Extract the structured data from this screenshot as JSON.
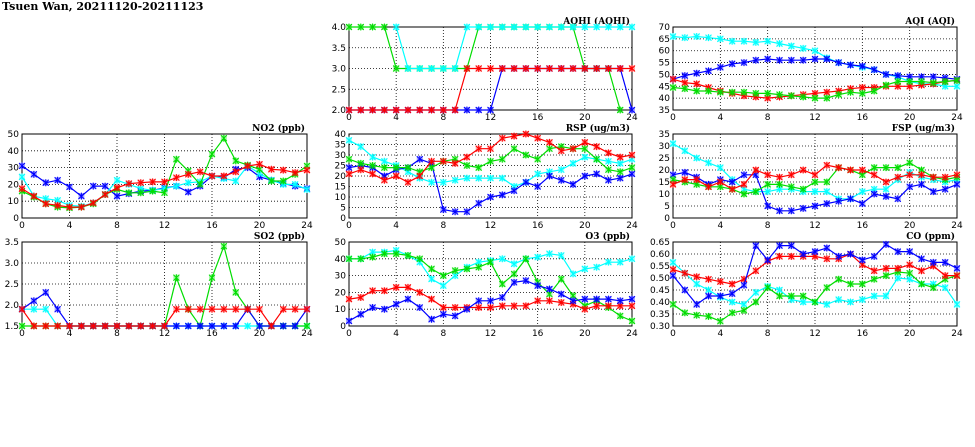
{
  "title": "Tsuen Wan, 20211120-20211123",
  "series_colors": {
    "blue": "#0000ff",
    "red": "#ff0000",
    "green": "#00dd00",
    "cyan": "#00ffff"
  },
  "chart_data": [
    {
      "id": "aqhi",
      "type": "line",
      "title": "AQHI (AQHI)",
      "ylim": [
        2,
        4
      ],
      "yticks": [
        "2.0",
        "2.5",
        "3.0",
        "3.5",
        "4.0"
      ],
      "xticks": [
        "0",
        "4",
        "8",
        "12",
        "16",
        "20",
        "24"
      ],
      "xlim": [
        0,
        24
      ],
      "grid": true,
      "series": [
        {
          "name": "green",
          "values": [
            4,
            4,
            4,
            4,
            3,
            3,
            3,
            3,
            3,
            3,
            3,
            4,
            4,
            4,
            4,
            4,
            4,
            4,
            4,
            4,
            3,
            3,
            3,
            2,
            null
          ]
        },
        {
          "name": "cyan",
          "values": [
            null,
            null,
            null,
            null,
            4,
            3,
            3,
            3,
            3,
            3,
            4,
            4,
            4,
            4,
            4,
            4,
            4,
            4,
            4,
            4,
            4,
            4,
            4,
            4,
            4
          ]
        },
        {
          "name": "blue",
          "values": [
            2,
            2,
            2,
            2,
            2,
            2,
            2,
            2,
            2,
            2,
            2,
            2,
            2,
            3,
            3,
            3,
            3,
            3,
            3,
            3,
            3,
            3,
            3,
            3,
            2
          ]
        },
        {
          "name": "red",
          "values": [
            2,
            2,
            2,
            2,
            2,
            2,
            2,
            2,
            2,
            2,
            3,
            3,
            3,
            3,
            3,
            3,
            3,
            3,
            3,
            3,
            3,
            3,
            3,
            3,
            3
          ]
        }
      ]
    },
    {
      "id": "aqi",
      "type": "line",
      "title": "AQI (AQI)",
      "ylim": [
        35,
        70
      ],
      "yticks": [
        "35",
        "40",
        "45",
        "50",
        "55",
        "60",
        "65",
        "70"
      ],
      "xticks": [
        "0",
        "4",
        "8",
        "12",
        "16",
        "20",
        "24"
      ],
      "xlim": [
        0,
        24
      ],
      "grid": true,
      "series": [
        {
          "name": "cyan",
          "values": [
            66,
            65.5,
            66,
            65.5,
            65,
            64,
            64,
            63.5,
            64,
            63,
            62,
            61,
            60,
            57,
            55,
            54,
            53,
            52,
            50,
            49,
            47,
            46,
            46,
            45,
            45
          ]
        },
        {
          "name": "blue",
          "values": [
            48,
            49.5,
            50.5,
            51.5,
            53,
            54.5,
            55,
            56,
            56.5,
            56,
            56,
            56,
            56.5,
            56.5,
            55,
            54,
            53.5,
            52,
            50,
            49.5,
            49,
            49,
            49,
            48.5,
            48
          ]
        },
        {
          "name": "red",
          "values": [
            48,
            46.5,
            46,
            44.5,
            43,
            42,
            41,
            40.5,
            40,
            40.5,
            41,
            41.5,
            42,
            42.5,
            43,
            44,
            44.5,
            44.5,
            45,
            45,
            45,
            45.5,
            46,
            47,
            47.5
          ]
        },
        {
          "name": "green",
          "values": [
            44.5,
            44,
            43,
            43,
            42.5,
            42.5,
            42.5,
            42,
            42,
            41.5,
            41,
            40.5,
            40,
            40,
            41.5,
            42.5,
            42,
            43,
            45.5,
            47,
            47,
            47,
            46.5,
            47,
            47.5
          ]
        }
      ]
    },
    {
      "id": "no2",
      "type": "line",
      "title": "NO2 (ppb)",
      "ylim": [
        0,
        50
      ],
      "yticks": [
        "0",
        "10",
        "20",
        "30",
        "40",
        "50"
      ],
      "xticks": [
        "0",
        "4",
        "8",
        "12",
        "16",
        "20",
        "24"
      ],
      "xlim": [
        0,
        24
      ],
      "grid": true,
      "series": [
        {
          "name": "blue",
          "values": [
            31,
            26,
            21,
            22.5,
            18.5,
            13,
            19,
            19,
            13,
            14.5,
            16,
            16.5,
            18,
            19,
            15.5,
            19,
            25,
            24,
            29,
            30,
            24.5,
            22.5,
            20.5,
            19,
            17.5
          ]
        },
        {
          "name": "cyan",
          "values": [
            24.5,
            13,
            11.5,
            10.5,
            7.5,
            7,
            9,
            14,
            22.5,
            20,
            17.5,
            16.5,
            17.5,
            19,
            21,
            21.5,
            25,
            23.5,
            22,
            31,
            26.5,
            22.5,
            20,
            20,
            17
          ]
        },
        {
          "name": "green",
          "values": [
            16,
            12.5,
            8.5,
            6.5,
            6,
            6.5,
            8.5,
            14,
            17,
            15,
            15,
            16,
            15,
            35,
            28,
            20,
            38,
            47.5,
            34,
            31.5,
            29,
            22,
            22,
            26,
            31
          ]
        },
        {
          "name": "red",
          "values": [
            17.5,
            13,
            8.5,
            7.5,
            6.5,
            6.5,
            9,
            14,
            18,
            20.5,
            21,
            21.5,
            21.5,
            24,
            26,
            27.5,
            25,
            25,
            27.5,
            31,
            32,
            29,
            28.5,
            27,
            28.5
          ]
        }
      ]
    },
    {
      "id": "rsp",
      "type": "line",
      "title": "RSP (ug/m3)",
      "ylim": [
        0,
        40
      ],
      "yticks": [
        "0",
        "5",
        "10",
        "15",
        "20",
        "25",
        "30",
        "35",
        "40"
      ],
      "xticks": [
        "0",
        "4",
        "8",
        "12",
        "16",
        "20",
        "24"
      ],
      "xlim": [
        0,
        24
      ],
      "grid": true,
      "series": [
        {
          "name": "cyan",
          "values": [
            37,
            34,
            29,
            27,
            25,
            22,
            19,
            17,
            17,
            18,
            19,
            19,
            19,
            19,
            15,
            17,
            21,
            22,
            23,
            26,
            29,
            28,
            27,
            26,
            28
          ]
        },
        {
          "name": "blue",
          "values": [
            24,
            25,
            24,
            20,
            23,
            24,
            28,
            26,
            4,
            3,
            3,
            7,
            10,
            11,
            13,
            17,
            15,
            20,
            18,
            16,
            20,
            21,
            18,
            19,
            21
          ]
        },
        {
          "name": "green",
          "values": [
            28,
            26,
            25,
            24,
            24,
            24,
            22,
            24,
            27,
            28,
            25,
            24,
            27,
            28,
            33,
            30,
            28,
            33,
            34,
            33,
            33,
            28,
            23,
            22,
            24
          ]
        },
        {
          "name": "red",
          "values": [
            21,
            23,
            21,
            18,
            20,
            17,
            20,
            27,
            27,
            26,
            29,
            33,
            33,
            38,
            39,
            40,
            38,
            36,
            32,
            33,
            36,
            34,
            31,
            29,
            30
          ]
        }
      ]
    },
    {
      "id": "fsp",
      "type": "line",
      "title": "FSP (ug/m3)",
      "ylim": [
        0,
        35
      ],
      "yticks": [
        "0",
        "5",
        "10",
        "15",
        "20",
        "25",
        "30",
        "35"
      ],
      "xticks": [
        "0",
        "4",
        "8",
        "12",
        "16",
        "20",
        "24"
      ],
      "xlim": [
        0,
        24
      ],
      "grid": true,
      "series": [
        {
          "name": "cyan",
          "values": [
            31,
            28,
            25,
            23,
            21,
            16,
            12,
            11,
            11,
            12,
            12,
            11,
            11,
            11,
            8,
            8,
            11,
            12,
            12,
            16,
            19,
            17,
            16,
            15,
            16
          ]
        },
        {
          "name": "blue",
          "values": [
            18,
            19,
            17,
            14,
            16,
            15,
            18,
            18,
            5,
            3,
            3,
            4,
            5,
            6,
            7,
            8,
            6,
            10,
            9,
            8,
            13,
            14,
            11,
            12,
            14
          ]
        },
        {
          "name": "green",
          "values": [
            16,
            15,
            14,
            13,
            13,
            12,
            10,
            11,
            14,
            14,
            13,
            12,
            15,
            15,
            21,
            20,
            18,
            21,
            21,
            21,
            23,
            20,
            17,
            16,
            17
          ]
        },
        {
          "name": "red",
          "values": [
            14,
            16,
            16,
            13,
            15,
            12,
            14,
            20,
            18,
            17,
            18,
            20,
            18,
            22,
            21,
            20,
            20,
            18,
            15,
            17,
            18,
            18,
            17,
            17,
            18
          ]
        }
      ]
    },
    {
      "id": "so2",
      "type": "line",
      "title": "SO2 (ppb)",
      "ylim": [
        1.5,
        3.5
      ],
      "yticks": [
        "1.5",
        "2.0",
        "2.5",
        "3.0",
        "3.5"
      ],
      "xticks": [
        "0",
        "4",
        "8",
        "12",
        "16",
        "20",
        "24"
      ],
      "xlim": [
        0,
        24
      ],
      "grid": true,
      "series": [
        {
          "name": "cyan",
          "values": [
            1.9,
            1.9,
            1.9,
            1.5,
            1.5,
            1.5,
            1.5,
            1.5,
            1.5,
            1.5,
            1.5,
            1.5,
            1.5,
            1.5,
            1.5,
            1.5,
            1.5,
            1.5,
            1.5,
            1.5,
            1.5,
            1.5,
            1.5,
            1.5,
            1.5
          ]
        },
        {
          "name": "green",
          "values": [
            1.5,
            1.5,
            1.5,
            1.5,
            1.5,
            1.5,
            1.5,
            1.5,
            1.5,
            1.5,
            1.5,
            1.5,
            1.5,
            2.65,
            1.9,
            1.5,
            2.65,
            3.4,
            2.3,
            1.9,
            1.5,
            1.5,
            1.5,
            1.5,
            1.5
          ]
        },
        {
          "name": "blue",
          "values": [
            1.9,
            2.1,
            2.3,
            1.9,
            1.5,
            1.5,
            1.5,
            1.5,
            1.5,
            1.5,
            1.5,
            1.5,
            1.5,
            1.5,
            1.5,
            1.5,
            1.5,
            1.5,
            1.5,
            1.9,
            1.5,
            1.5,
            1.5,
            1.5,
            1.9
          ]
        },
        {
          "name": "red",
          "values": [
            1.9,
            1.5,
            1.5,
            1.5,
            1.5,
            1.5,
            1.5,
            1.5,
            1.5,
            1.5,
            1.5,
            1.5,
            1.5,
            1.9,
            1.9,
            1.9,
            1.9,
            1.9,
            1.9,
            1.9,
            1.9,
            1.5,
            1.9,
            1.9,
            1.9
          ]
        }
      ]
    },
    {
      "id": "o3",
      "type": "line",
      "title": "O3 (ppb)",
      "ylim": [
        0,
        50
      ],
      "yticks": [
        "0",
        "10",
        "20",
        "30",
        "40",
        "50"
      ],
      "xticks": [
        "0",
        "4",
        "8",
        "12",
        "16",
        "20",
        "24"
      ],
      "xlim": [
        0,
        24
      ],
      "grid": true,
      "series": [
        {
          "name": "cyan",
          "values": [
            40,
            40,
            44,
            44,
            45,
            42,
            38,
            28,
            24,
            30,
            35,
            38,
            39,
            40,
            37,
            40,
            41,
            43,
            42,
            31,
            34,
            35,
            38,
            38,
            40
          ]
        },
        {
          "name": "green",
          "values": [
            40,
            40,
            41,
            43,
            43,
            42,
            40,
            34,
            30,
            33,
            34,
            35,
            38,
            25,
            31,
            40,
            26,
            19,
            28,
            18,
            12,
            15,
            11,
            6,
            3
          ]
        },
        {
          "name": "red",
          "values": [
            16,
            17,
            21,
            21,
            23,
            23,
            20,
            16,
            11,
            11,
            11,
            11,
            11,
            12,
            12,
            12,
            15,
            15,
            14,
            13,
            10,
            12,
            12,
            12,
            12
          ]
        },
        {
          "name": "blue",
          "values": [
            3,
            7,
            11,
            10,
            13,
            16,
            11,
            4,
            7,
            6,
            10,
            15,
            15,
            17,
            26,
            27,
            24,
            22,
            19,
            15,
            16,
            16,
            16,
            15,
            16
          ]
        }
      ]
    },
    {
      "id": "co",
      "type": "line",
      "title": "CO (ppm)",
      "ylim": [
        0.3,
        0.65
      ],
      "yticks": [
        "0.30",
        "0.35",
        "0.40",
        "0.45",
        "0.50",
        "0.55",
        "0.60",
        "0.65"
      ],
      "xticks": [
        "0",
        "4",
        "8",
        "12",
        "16",
        "20",
        "24"
      ],
      "xlim": [
        0,
        24
      ],
      "grid": true,
      "series": [
        {
          "name": "cyan",
          "values": [
            0.565,
            0.52,
            0.475,
            0.45,
            0.42,
            0.4,
            0.39,
            0.44,
            0.465,
            0.45,
            0.41,
            0.4,
            0.4,
            0.39,
            0.41,
            0.4,
            0.41,
            0.425,
            0.425,
            0.5,
            0.495,
            0.475,
            0.475,
            0.46,
            0.39
          ]
        },
        {
          "name": "green",
          "values": [
            0.39,
            0.355,
            0.345,
            0.34,
            0.32,
            0.355,
            0.365,
            0.4,
            0.46,
            0.425,
            0.425,
            0.425,
            0.4,
            0.46,
            0.495,
            0.475,
            0.475,
            0.495,
            0.51,
            0.525,
            0.52,
            0.475,
            0.46,
            0.495,
            0.51
          ]
        },
        {
          "name": "red",
          "values": [
            0.535,
            0.52,
            0.505,
            0.495,
            0.485,
            0.475,
            0.495,
            0.53,
            0.57,
            0.59,
            0.59,
            0.59,
            0.59,
            0.58,
            0.58,
            0.6,
            0.555,
            0.53,
            0.54,
            0.54,
            0.555,
            0.53,
            0.55,
            0.51,
            0.51
          ]
        },
        {
          "name": "blue",
          "values": [
            0.51,
            0.45,
            0.39,
            0.425,
            0.425,
            0.435,
            0.47,
            0.635,
            0.575,
            0.635,
            0.635,
            0.6,
            0.61,
            0.625,
            0.59,
            0.6,
            0.575,
            0.59,
            0.64,
            0.61,
            0.61,
            0.58,
            0.565,
            0.565,
            0.54
          ]
        }
      ]
    }
  ]
}
